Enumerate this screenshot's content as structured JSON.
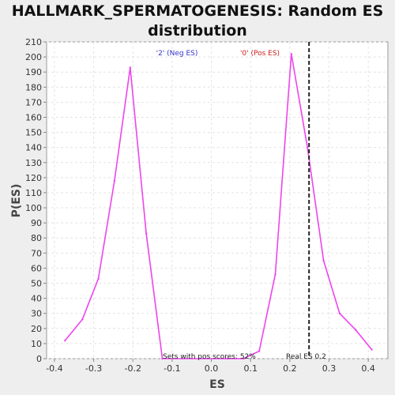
{
  "chart_data": {
    "type": "line",
    "title_line1": "HALLMARK_SPERMATOGENESIS: Random ES",
    "title_line2": "distribution",
    "xlabel": "ES",
    "ylabel": "P(ES)",
    "xlim": [
      -0.42,
      0.45
    ],
    "ylim": [
      0,
      210
    ],
    "x_ticks": [
      -0.4,
      -0.3,
      -0.2,
      -0.1,
      0.0,
      0.1,
      0.2,
      0.3,
      0.4
    ],
    "x_tick_labels": [
      "-0.4",
      "-0.3",
      "-0.2",
      "-0.1",
      "0.0",
      "0.1",
      "0.2",
      "0.3",
      "0.4"
    ],
    "y_ticks": [
      0,
      10,
      20,
      30,
      40,
      50,
      60,
      70,
      80,
      90,
      100,
      110,
      120,
      130,
      140,
      150,
      160,
      170,
      180,
      190,
      200,
      210
    ],
    "grid": true,
    "series": [
      {
        "color": "#ee44ee",
        "x": [
          -0.373,
          -0.329,
          -0.288,
          -0.247,
          -0.207,
          -0.166,
          -0.125,
          0.041,
          0.082,
          0.122,
          0.163,
          0.204,
          0.245,
          0.286,
          0.327,
          0.368,
          0.409
        ],
        "y": [
          12,
          26,
          53,
          118,
          193,
          83,
          0,
          0,
          0,
          5,
          56,
          202,
          140,
          65,
          30,
          19,
          6
        ]
      }
    ],
    "real_es": 0.249,
    "annotations": {
      "neg_label": "'2' (Neg ES)",
      "pos_label": "'0' (Pos ES)",
      "pos_scores": "Sets with pos scores: 52%",
      "real_es_label": "Real ES 0.2"
    },
    "colors": {
      "neg_label": "#3333cc",
      "pos_label": "#cc2222",
      "line": "#ee44ee",
      "real_es_line": "#222222"
    }
  }
}
